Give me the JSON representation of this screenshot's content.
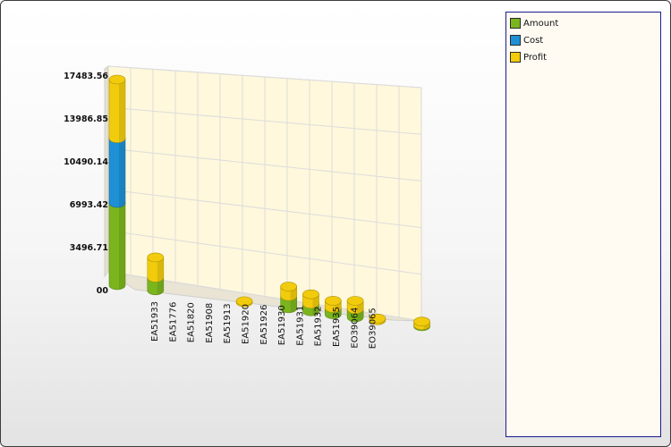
{
  "chart_data": {
    "type": "bar",
    "stacked": true,
    "three_d": true,
    "title": "",
    "xlabel": "",
    "ylabel": "",
    "y_ticks": [
      "00",
      "3496.71",
      "6993.42",
      "10490.14",
      "13986.85",
      "17483.56"
    ],
    "ylim": [
      0,
      17483.56
    ],
    "grid": true,
    "legend_position": "right",
    "categories": [
      "",
      "EA51933",
      "EA51776",
      "EA51820",
      "EA51908",
      "EA51913",
      "EA51920",
      "EA51926",
      "EA51930",
      "EA51931",
      "EA51932",
      "EA51935",
      "EO39064",
      "EO39065"
    ],
    "series": [
      {
        "name": "Amount",
        "color": "#7ab51d",
        "values": [
          7000,
          1100,
          0,
          0,
          0,
          0,
          0,
          1050,
          650,
          550,
          700,
          0,
          0,
          100
        ]
      },
      {
        "name": "Cost",
        "color": "#1e90d6",
        "values": [
          5500,
          0,
          0,
          0,
          0,
          0,
          0,
          0,
          0,
          0,
          0,
          0,
          0,
          0
        ]
      },
      {
        "name": "Profit",
        "color": "#f2cc0c",
        "values": [
          4983.56,
          1700,
          0,
          0,
          0,
          100,
          0,
          800,
          800,
          600,
          700,
          150,
          0,
          300
        ]
      }
    ]
  }
}
